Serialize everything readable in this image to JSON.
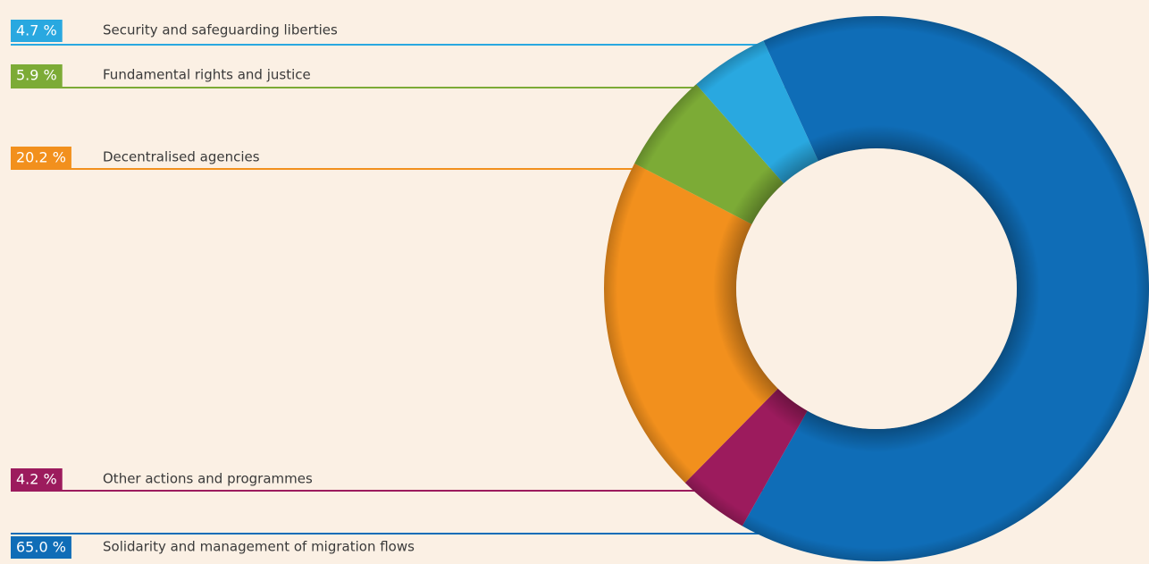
{
  "chart_data": {
    "type": "pie",
    "categories": [
      "Solidarity and management of migration flows",
      "Other actions and programmes",
      "Decentralised agencies",
      "Fundamental rights and justice",
      "Security and safeguarding liberties"
    ],
    "values": [
      65.0,
      4.2,
      20.2,
      5.9,
      4.7
    ],
    "value_labels": [
      "65.0 %",
      "4.2 %",
      "20.2 %",
      "5.9 %",
      "4.7 %"
    ],
    "colors": [
      "#0f6db7",
      "#9c1b5d",
      "#f2901d",
      "#7cab36",
      "#29a8e0"
    ]
  }
}
